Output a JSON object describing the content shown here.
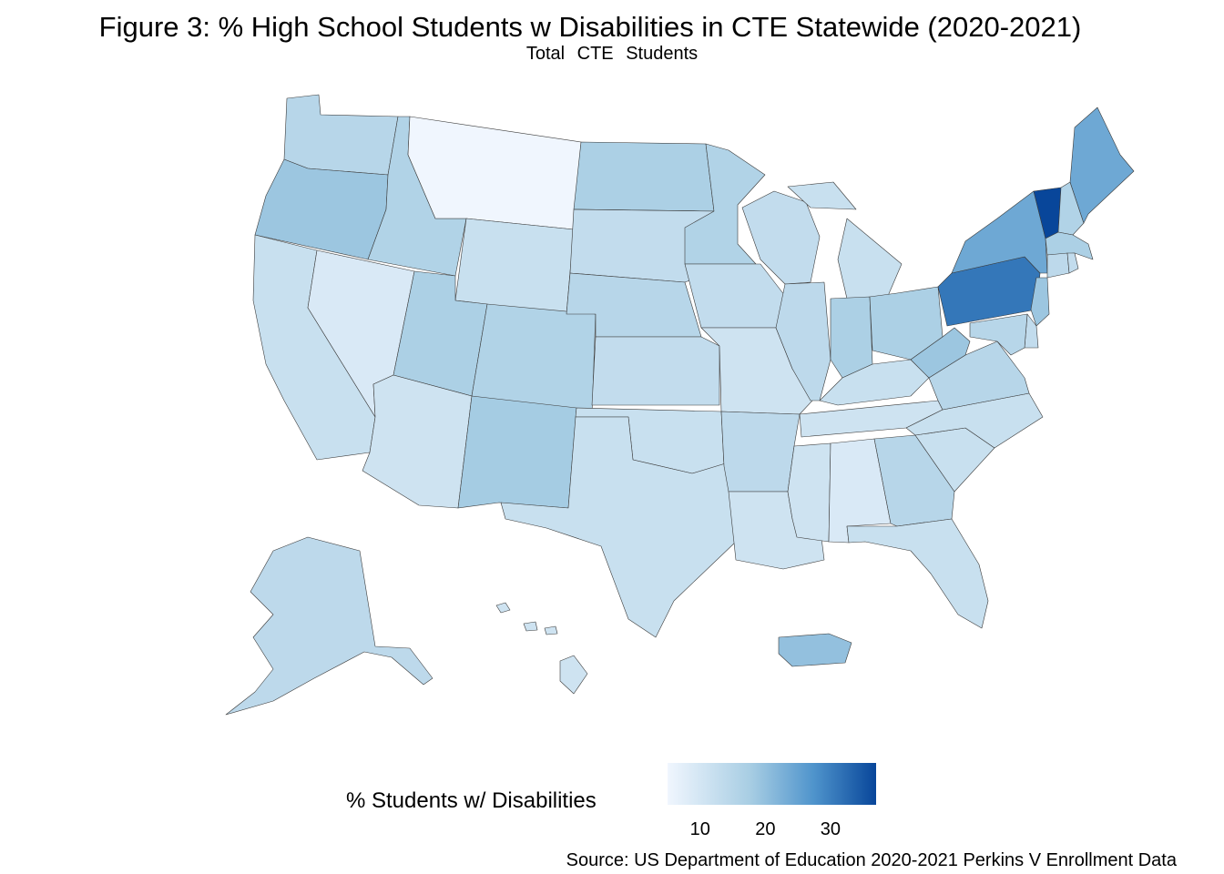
{
  "title": "Figure 3: % High School Students w Disabilities in CTE Statewide (2020-2021)",
  "subtitle_words": [
    "Total",
    "CTE",
    "Students"
  ],
  "legend": {
    "title": "% Students w/ Disabilities",
    "ticks": [
      "10",
      "20",
      "30"
    ],
    "tick_values": [
      10,
      20,
      30
    ],
    "range": [
      5,
      37
    ],
    "low_color": "#f0f6fe",
    "high_color": "#08469a"
  },
  "source": "Source: US Department of Education 2020-2021 Perkins V Enrollment Data",
  "states": [
    {
      "name": "Washington",
      "value": 15
    },
    {
      "name": "Oregon",
      "value": 19
    },
    {
      "name": "California",
      "value": 12
    },
    {
      "name": "Nevada",
      "value": 9
    },
    {
      "name": "Idaho",
      "value": 16
    },
    {
      "name": "Montana",
      "value": 5
    },
    {
      "name": "Wyoming",
      "value": 12
    },
    {
      "name": "Utah",
      "value": 17
    },
    {
      "name": "Arizona",
      "value": 11
    },
    {
      "name": "Colorado",
      "value": 16
    },
    {
      "name": "New Mexico",
      "value": 18
    },
    {
      "name": "North Dakota",
      "value": 17
    },
    {
      "name": "South Dakota",
      "value": 13
    },
    {
      "name": "Nebraska",
      "value": 15
    },
    {
      "name": "Kansas",
      "value": 13
    },
    {
      "name": "Oklahoma",
      "value": 12
    },
    {
      "name": "Texas",
      "value": 12
    },
    {
      "name": "Minnesota",
      "value": 16
    },
    {
      "name": "Iowa",
      "value": 13
    },
    {
      "name": "Missouri",
      "value": 11
    },
    {
      "name": "Arkansas",
      "value": 14
    },
    {
      "name": "Louisiana",
      "value": 11
    },
    {
      "name": "Wisconsin",
      "value": 13
    },
    {
      "name": "Illinois",
      "value": 14
    },
    {
      "name": "Michigan",
      "value": 12
    },
    {
      "name": "Indiana",
      "value": 17
    },
    {
      "name": "Ohio",
      "value": 17
    },
    {
      "name": "Kentucky",
      "value": 12
    },
    {
      "name": "Tennessee",
      "value": 11
    },
    {
      "name": "Mississippi",
      "value": 11
    },
    {
      "name": "Alabama",
      "value": 9
    },
    {
      "name": "Georgia",
      "value": 15
    },
    {
      "name": "Florida",
      "value": 12
    },
    {
      "name": "South Carolina",
      "value": 12
    },
    {
      "name": "North Carolina",
      "value": 12
    },
    {
      "name": "Virginia",
      "value": 15
    },
    {
      "name": "West Virginia",
      "value": 19
    },
    {
      "name": "Pennsylvania",
      "value": 31
    },
    {
      "name": "New York",
      "value": 24
    },
    {
      "name": "Vermont",
      "value": 37
    },
    {
      "name": "New Hampshire",
      "value": 16
    },
    {
      "name": "Maine",
      "value": 24
    },
    {
      "name": "Massachusetts",
      "value": 17
    },
    {
      "name": "Connecticut",
      "value": 14
    },
    {
      "name": "Rhode Island",
      "value": 13
    },
    {
      "name": "New Jersey",
      "value": 19
    },
    {
      "name": "Delaware",
      "value": 13
    },
    {
      "name": "Maryland",
      "value": 15
    },
    {
      "name": "Alaska",
      "value": 14
    },
    {
      "name": "Hawaii",
      "value": 11
    },
    {
      "name": "Puerto Rico",
      "value": 20
    }
  ]
}
